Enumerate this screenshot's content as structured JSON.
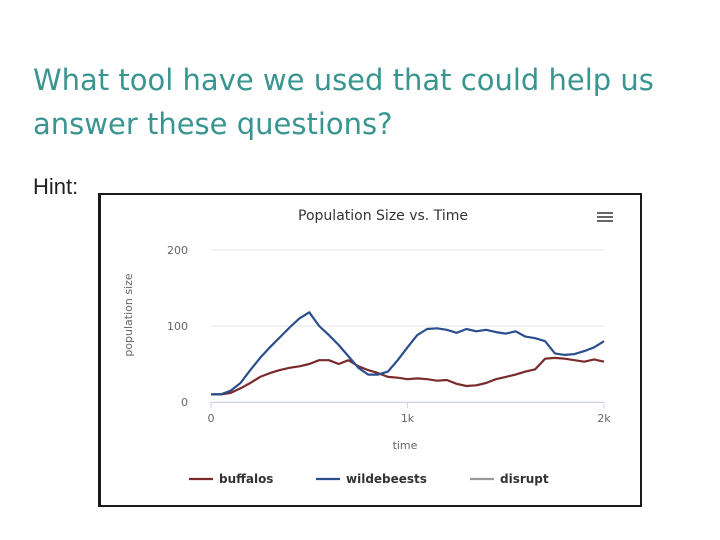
{
  "slide": {
    "title": "What tool have we used that could help us answer these questions?",
    "hint": "Hint:"
  },
  "colors": {
    "title": "#3a9591",
    "buffalos": "#7a2a2a",
    "wildebeests": "#2b4e8c",
    "disrupt": "#999999"
  },
  "icons": {
    "menu": "hamburger-menu-icon"
  },
  "chart_data": {
    "type": "line",
    "title": "Population Size vs. Time",
    "xlabel": "time",
    "ylabel": "population size",
    "xlim": [
      0,
      2000
    ],
    "ylim": [
      0,
      200
    ],
    "xticks": [
      0,
      1000,
      2000
    ],
    "xtick_labels": [
      "0",
      "1k",
      "2k"
    ],
    "yticks": [
      0,
      100,
      200
    ],
    "ytick_labels": [
      "0",
      "100",
      "200"
    ],
    "grid": true,
    "legend": "bottom",
    "series": [
      {
        "name": "buffalos",
        "x": [
          0,
          50,
          100,
          150,
          200,
          250,
          300,
          350,
          400,
          450,
          500,
          550,
          600,
          650,
          700,
          750,
          800,
          850,
          900,
          950,
          1000,
          1050,
          1100,
          1150,
          1200,
          1250,
          1300,
          1350,
          1400,
          1450,
          1500,
          1550,
          1600,
          1650,
          1700,
          1750,
          1800,
          1850,
          1900,
          1950,
          2000
        ],
        "values": [
          10,
          10,
          12,
          18,
          25,
          33,
          38,
          42,
          45,
          47,
          50,
          55,
          55,
          50,
          55,
          47,
          42,
          38,
          33,
          32,
          30,
          31,
          30,
          28,
          29,
          24,
          21,
          22,
          25,
          30,
          33,
          36,
          40,
          43,
          57,
          58,
          57,
          55,
          53,
          56,
          53
        ]
      },
      {
        "name": "wildebeests",
        "x": [
          0,
          50,
          100,
          150,
          200,
          250,
          300,
          350,
          400,
          450,
          500,
          550,
          600,
          650,
          700,
          750,
          800,
          850,
          900,
          950,
          1000,
          1050,
          1100,
          1150,
          1200,
          1250,
          1300,
          1350,
          1400,
          1450,
          1500,
          1550,
          1600,
          1650,
          1700,
          1750,
          1800,
          1850,
          1900,
          1950,
          2000
        ],
        "values": [
          10,
          10,
          15,
          25,
          42,
          58,
          72,
          85,
          98,
          110,
          118,
          100,
          88,
          75,
          60,
          45,
          36,
          36,
          40,
          55,
          72,
          88,
          96,
          97,
          95,
          91,
          96,
          93,
          95,
          92,
          90,
          93,
          86,
          84,
          80,
          64,
          62,
          63,
          67,
          72,
          80
        ]
      },
      {
        "name": "disrupt",
        "x": [],
        "values": []
      }
    ]
  }
}
